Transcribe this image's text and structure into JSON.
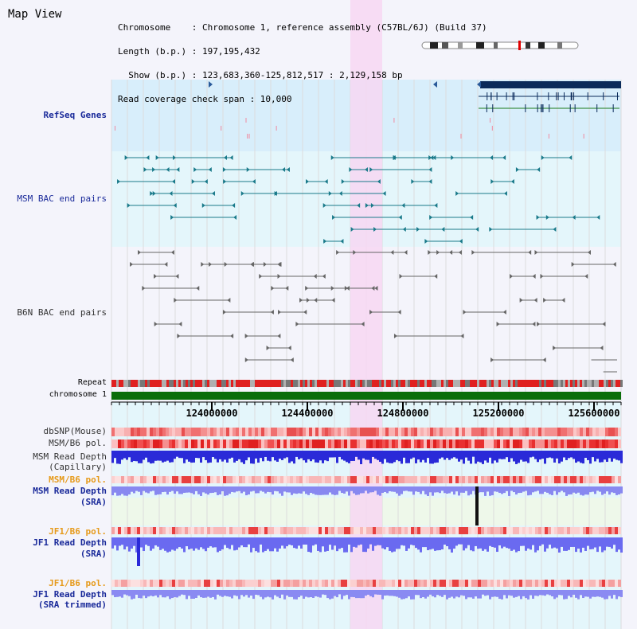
{
  "title": "Map View",
  "info": {
    "chromosome": "Chromosome    : Chromosome 1, reference assembly (C57BL/6J) (Build 37)",
    "length": "Length (b.p.) : 197,195,432",
    "show": "  Show (b.p.) : 123,683,360-125,812,517 : 2,129,158 bp",
    "coverage": "Read coverage check span : 10,000"
  },
  "tracks": {
    "refseq": "RefSeq Genes",
    "msm_bac": "MSM BAC end pairs",
    "b6n_bac": "B6N BAC end pairs",
    "repeat": "Repeat",
    "chromosome": "chromosome 1",
    "dbsnp": "dbSNP(Mouse)",
    "msm_b6_pol_1": "MSM/B6 pol.",
    "msm_depth_cap_1": "MSM Read Depth",
    "msm_depth_cap_2": "(Capillary)",
    "msm_b6_pol_2": "MSM/B6 pol.",
    "msm_depth_sra_1": "MSM Read Depth",
    "msm_depth_sra_2": "(SRA)",
    "jf1_b6_pol_1": "JF1/B6 pol.",
    "jf1_depth_sra_1": "JF1 Read Depth",
    "jf1_depth_sra_2": "(SRA)",
    "jf1_b6_pol_2": "JF1/B6 pol.",
    "jf1_depth_trim_1": "JF1 Read Depth",
    "jf1_depth_trim_2": "(SRA trimmed)"
  },
  "ruler": {
    "ticks": [
      "124000000",
      "124400000",
      "124800000",
      "125200000",
      "125600000"
    ]
  },
  "colors": {
    "highlight": "#f7d7f2",
    "refseq_bg": "#d8eefb",
    "msm_bac": "#1a7a8a",
    "b6n_bac": "#666666",
    "chromosome_bar": "#0a6e0a",
    "depth_blue": "#2a2ad8",
    "depth_light": "#8888f0",
    "snp_red": "#e84040",
    "gene_navy": "#0a2a5a"
  }
}
